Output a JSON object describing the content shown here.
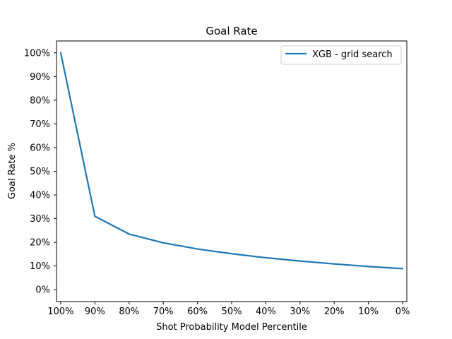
{
  "chart_data": {
    "type": "line",
    "title": "Goal Rate",
    "xlabel": "Shot Probability Model Percentile",
    "ylabel": "Goal Rate %",
    "x_ticks": [
      "100%",
      "90%",
      "80%",
      "70%",
      "60%",
      "50%",
      "40%",
      "30%",
      "20%",
      "10%",
      "0%"
    ],
    "y_ticks": [
      "0%",
      "10%",
      "20%",
      "30%",
      "40%",
      "50%",
      "60%",
      "70%",
      "80%",
      "90%",
      "100%"
    ],
    "xlim": [
      100,
      0
    ],
    "ylim": [
      -5,
      105
    ],
    "x_reversed": true,
    "grid": false,
    "legend_position": "top-right",
    "series": [
      {
        "name": "XGB - grid search",
        "color": "#1f77b4",
        "x": [
          100,
          90,
          80,
          70,
          60,
          50,
          40,
          30,
          20,
          10,
          0
        ],
        "y": [
          100,
          31,
          23.5,
          19.8,
          17.2,
          15.2,
          13.5,
          12.1,
          10.9,
          9.8,
          8.9
        ]
      }
    ]
  }
}
